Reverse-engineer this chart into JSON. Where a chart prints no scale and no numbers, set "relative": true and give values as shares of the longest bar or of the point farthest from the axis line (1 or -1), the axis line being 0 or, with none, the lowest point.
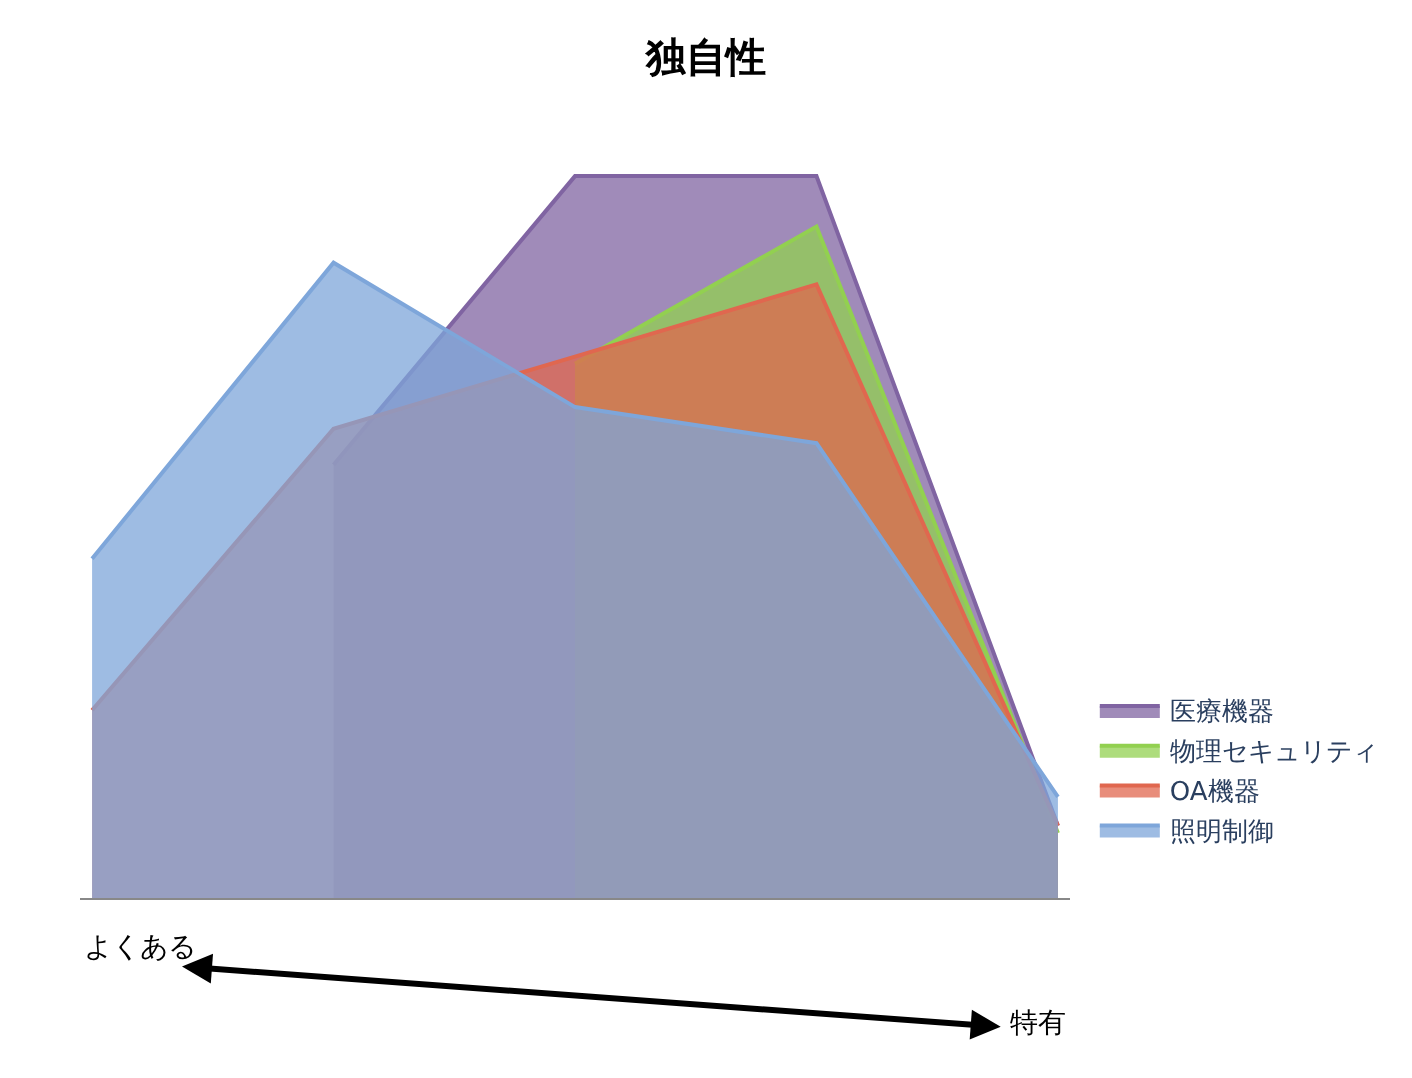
{
  "chart_data": {
    "type": "area",
    "title": "独自性",
    "relative": true,
    "categories": [
      null,
      null,
      null,
      null,
      null
    ],
    "series": [
      {
        "name": "医療機器",
        "color": "#8064a2",
        "values": [
          null,
          0.6,
          1.0,
          1.0,
          0.1
        ]
      },
      {
        "name": "物理セキュリティ",
        "color": "#92d050",
        "values": [
          null,
          null,
          0.74,
          0.93,
          0.09
        ]
      },
      {
        "name": "OA機器",
        "color": "#e0674f",
        "values": [
          0.26,
          0.65,
          0.75,
          0.85,
          0.1
        ]
      },
      {
        "name": "照明制御",
        "color": "#7ea6da",
        "values": [
          0.47,
          0.88,
          0.68,
          0.63,
          0.14
        ]
      }
    ],
    "annotations": [
      "よくある",
      "特有"
    ],
    "legend": "right"
  }
}
